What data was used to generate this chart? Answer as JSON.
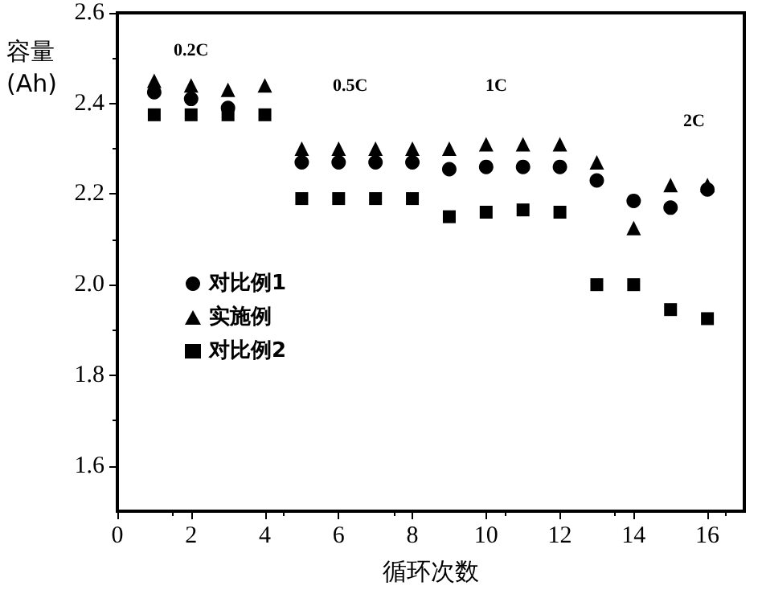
{
  "chart_data": {
    "type": "scatter",
    "xlabel": "循环次数",
    "ylabel": "容量\n(Ah)",
    "x": [
      1,
      2,
      3,
      4,
      5,
      6,
      7,
      8,
      9,
      10,
      11,
      12,
      13,
      14,
      15,
      16
    ],
    "series": [
      {
        "name": "对比例1",
        "color": "#000000",
        "marker": "circle",
        "values": [
          2.425,
          2.41,
          2.39,
          null,
          2.27,
          2.27,
          2.27,
          2.27,
          2.255,
          2.26,
          2.26,
          2.26,
          2.23,
          2.185,
          2.17,
          2.21
        ]
      },
      {
        "name": "实施例",
        "color": "#000000",
        "marker": "triangle",
        "values": [
          2.45,
          2.44,
          2.43,
          2.44,
          2.3,
          2.3,
          2.3,
          2.3,
          2.3,
          2.31,
          2.31,
          2.31,
          2.27,
          2.125,
          2.22,
          2.22
        ]
      },
      {
        "name": "对比例2",
        "color": "#000000",
        "marker": "square",
        "values": [
          2.375,
          2.375,
          2.375,
          2.375,
          2.19,
          2.19,
          2.19,
          2.19,
          2.15,
          2.16,
          2.165,
          2.16,
          2.0,
          2.0,
          1.945,
          1.925
        ]
      }
    ],
    "annotations": [
      "0.2C",
      "0.5C",
      "1C",
      "2C"
    ],
    "xlim": [
      0,
      17
    ],
    "xticks": [
      0,
      2,
      4,
      6,
      8,
      10,
      12,
      14,
      16
    ],
    "ylim": [
      1.5,
      2.6
    ],
    "yticks": [
      1.6,
      1.8,
      {
        "value": 2,
        "label": "2.0"
      },
      2.2,
      2.4,
      2.6
    ],
    "legend": "left",
    "grid": false
  }
}
